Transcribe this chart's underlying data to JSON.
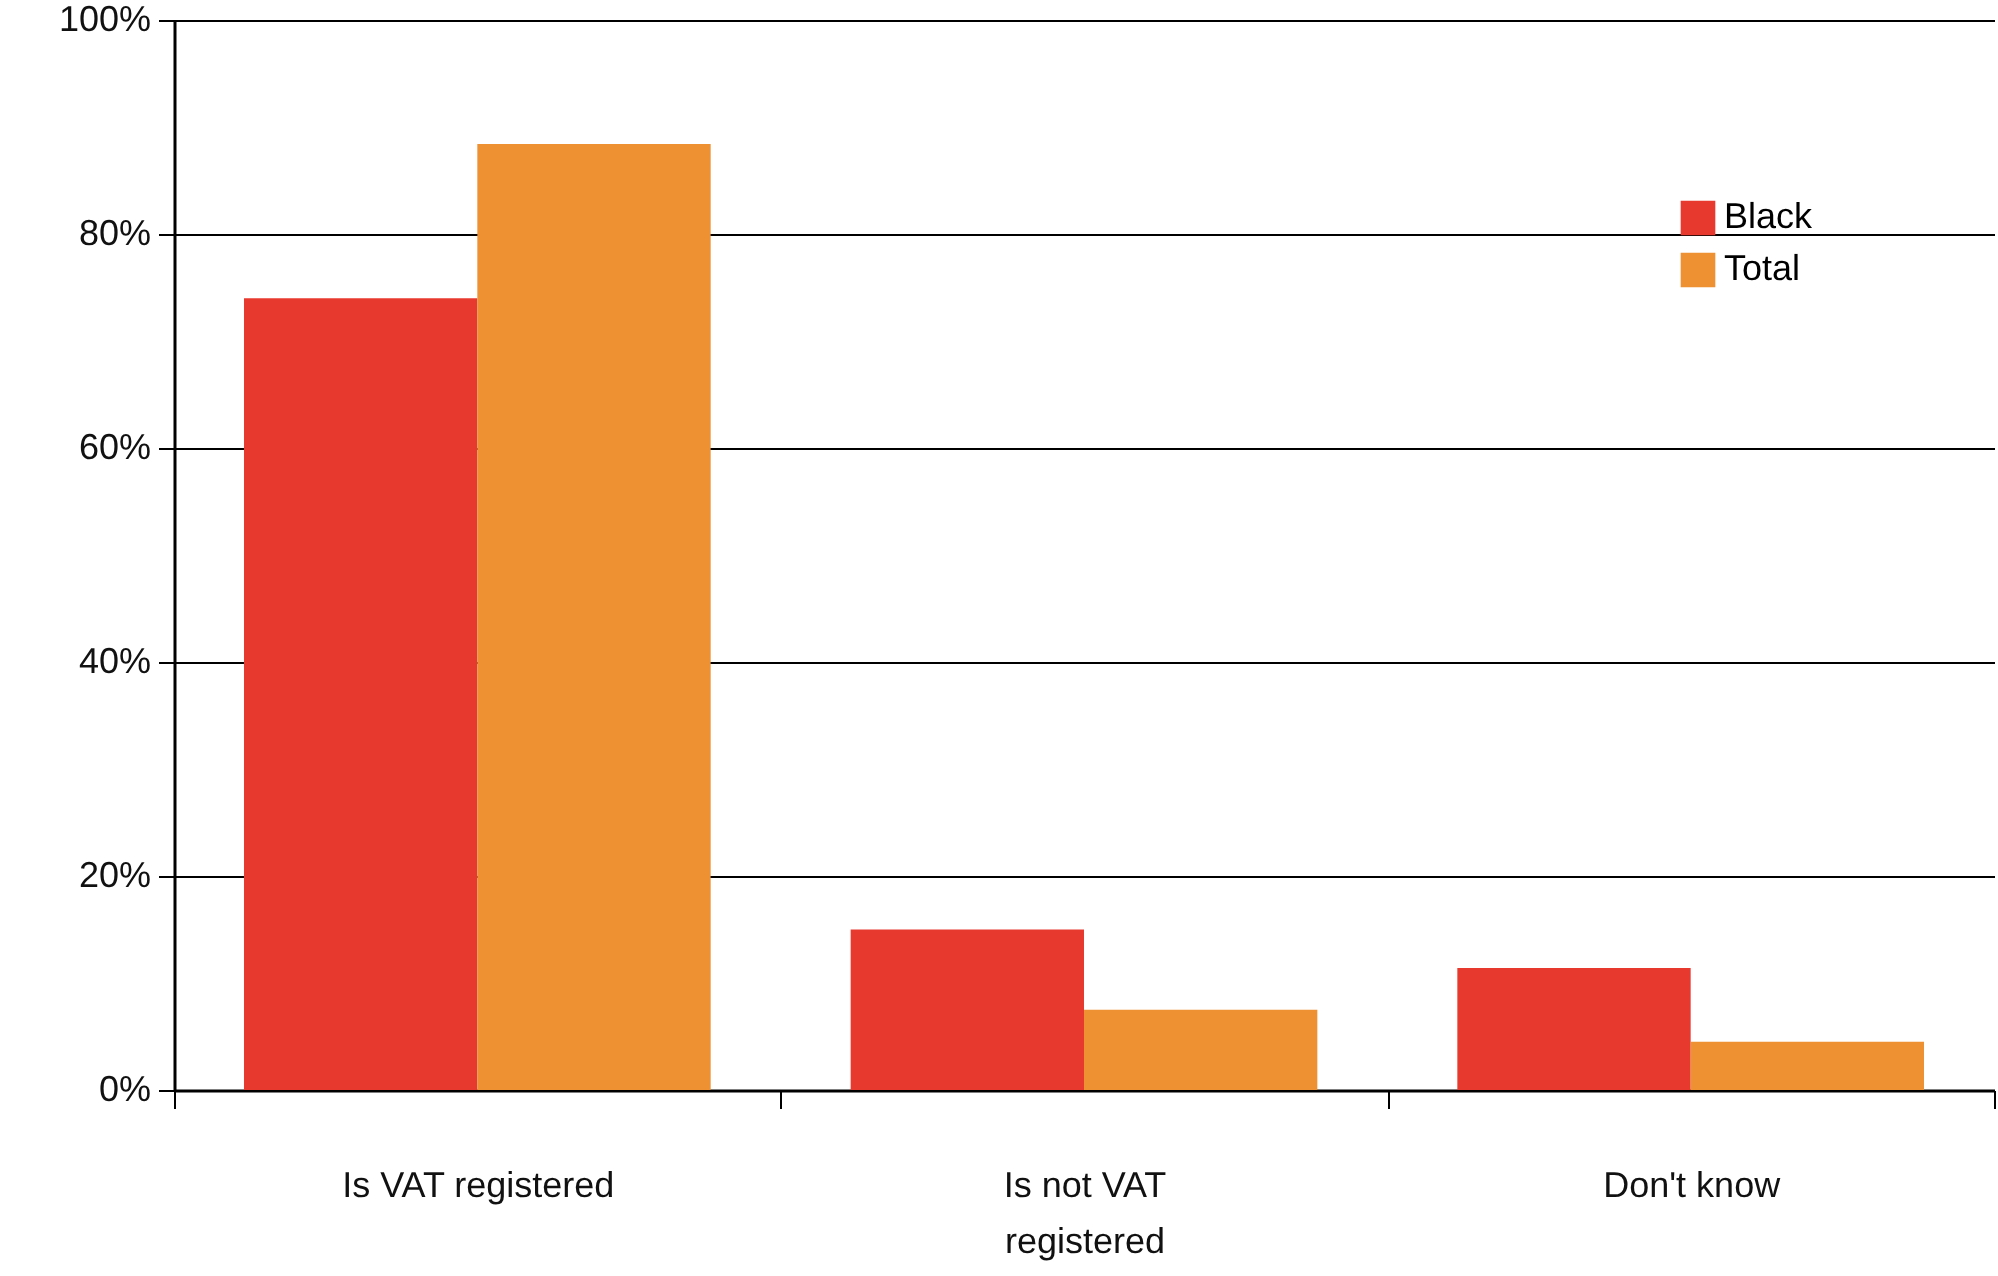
{
  "chart_data": {
    "type": "bar",
    "categories": [
      "Is VAT registered",
      "Is not VAT registered",
      "Don't know"
    ],
    "series": [
      {
        "name": "Black",
        "color": "#e8392f",
        "values": [
          74,
          15,
          11.4
        ]
      },
      {
        "name": "Total",
        "color": "#ee9133",
        "values": [
          88.4,
          7.5,
          4.5
        ]
      }
    ],
    "ylim": [
      0,
      100
    ],
    "yticks": [
      {
        "value": 0,
        "label": "0%"
      },
      {
        "value": 20,
        "label": "20%"
      },
      {
        "value": 40,
        "label": "40%"
      },
      {
        "value": 60,
        "label": "60%"
      },
      {
        "value": 80,
        "label": "80%"
      },
      {
        "value": 100,
        "label": "100%"
      }
    ],
    "grid": "y",
    "legend": "top right"
  }
}
